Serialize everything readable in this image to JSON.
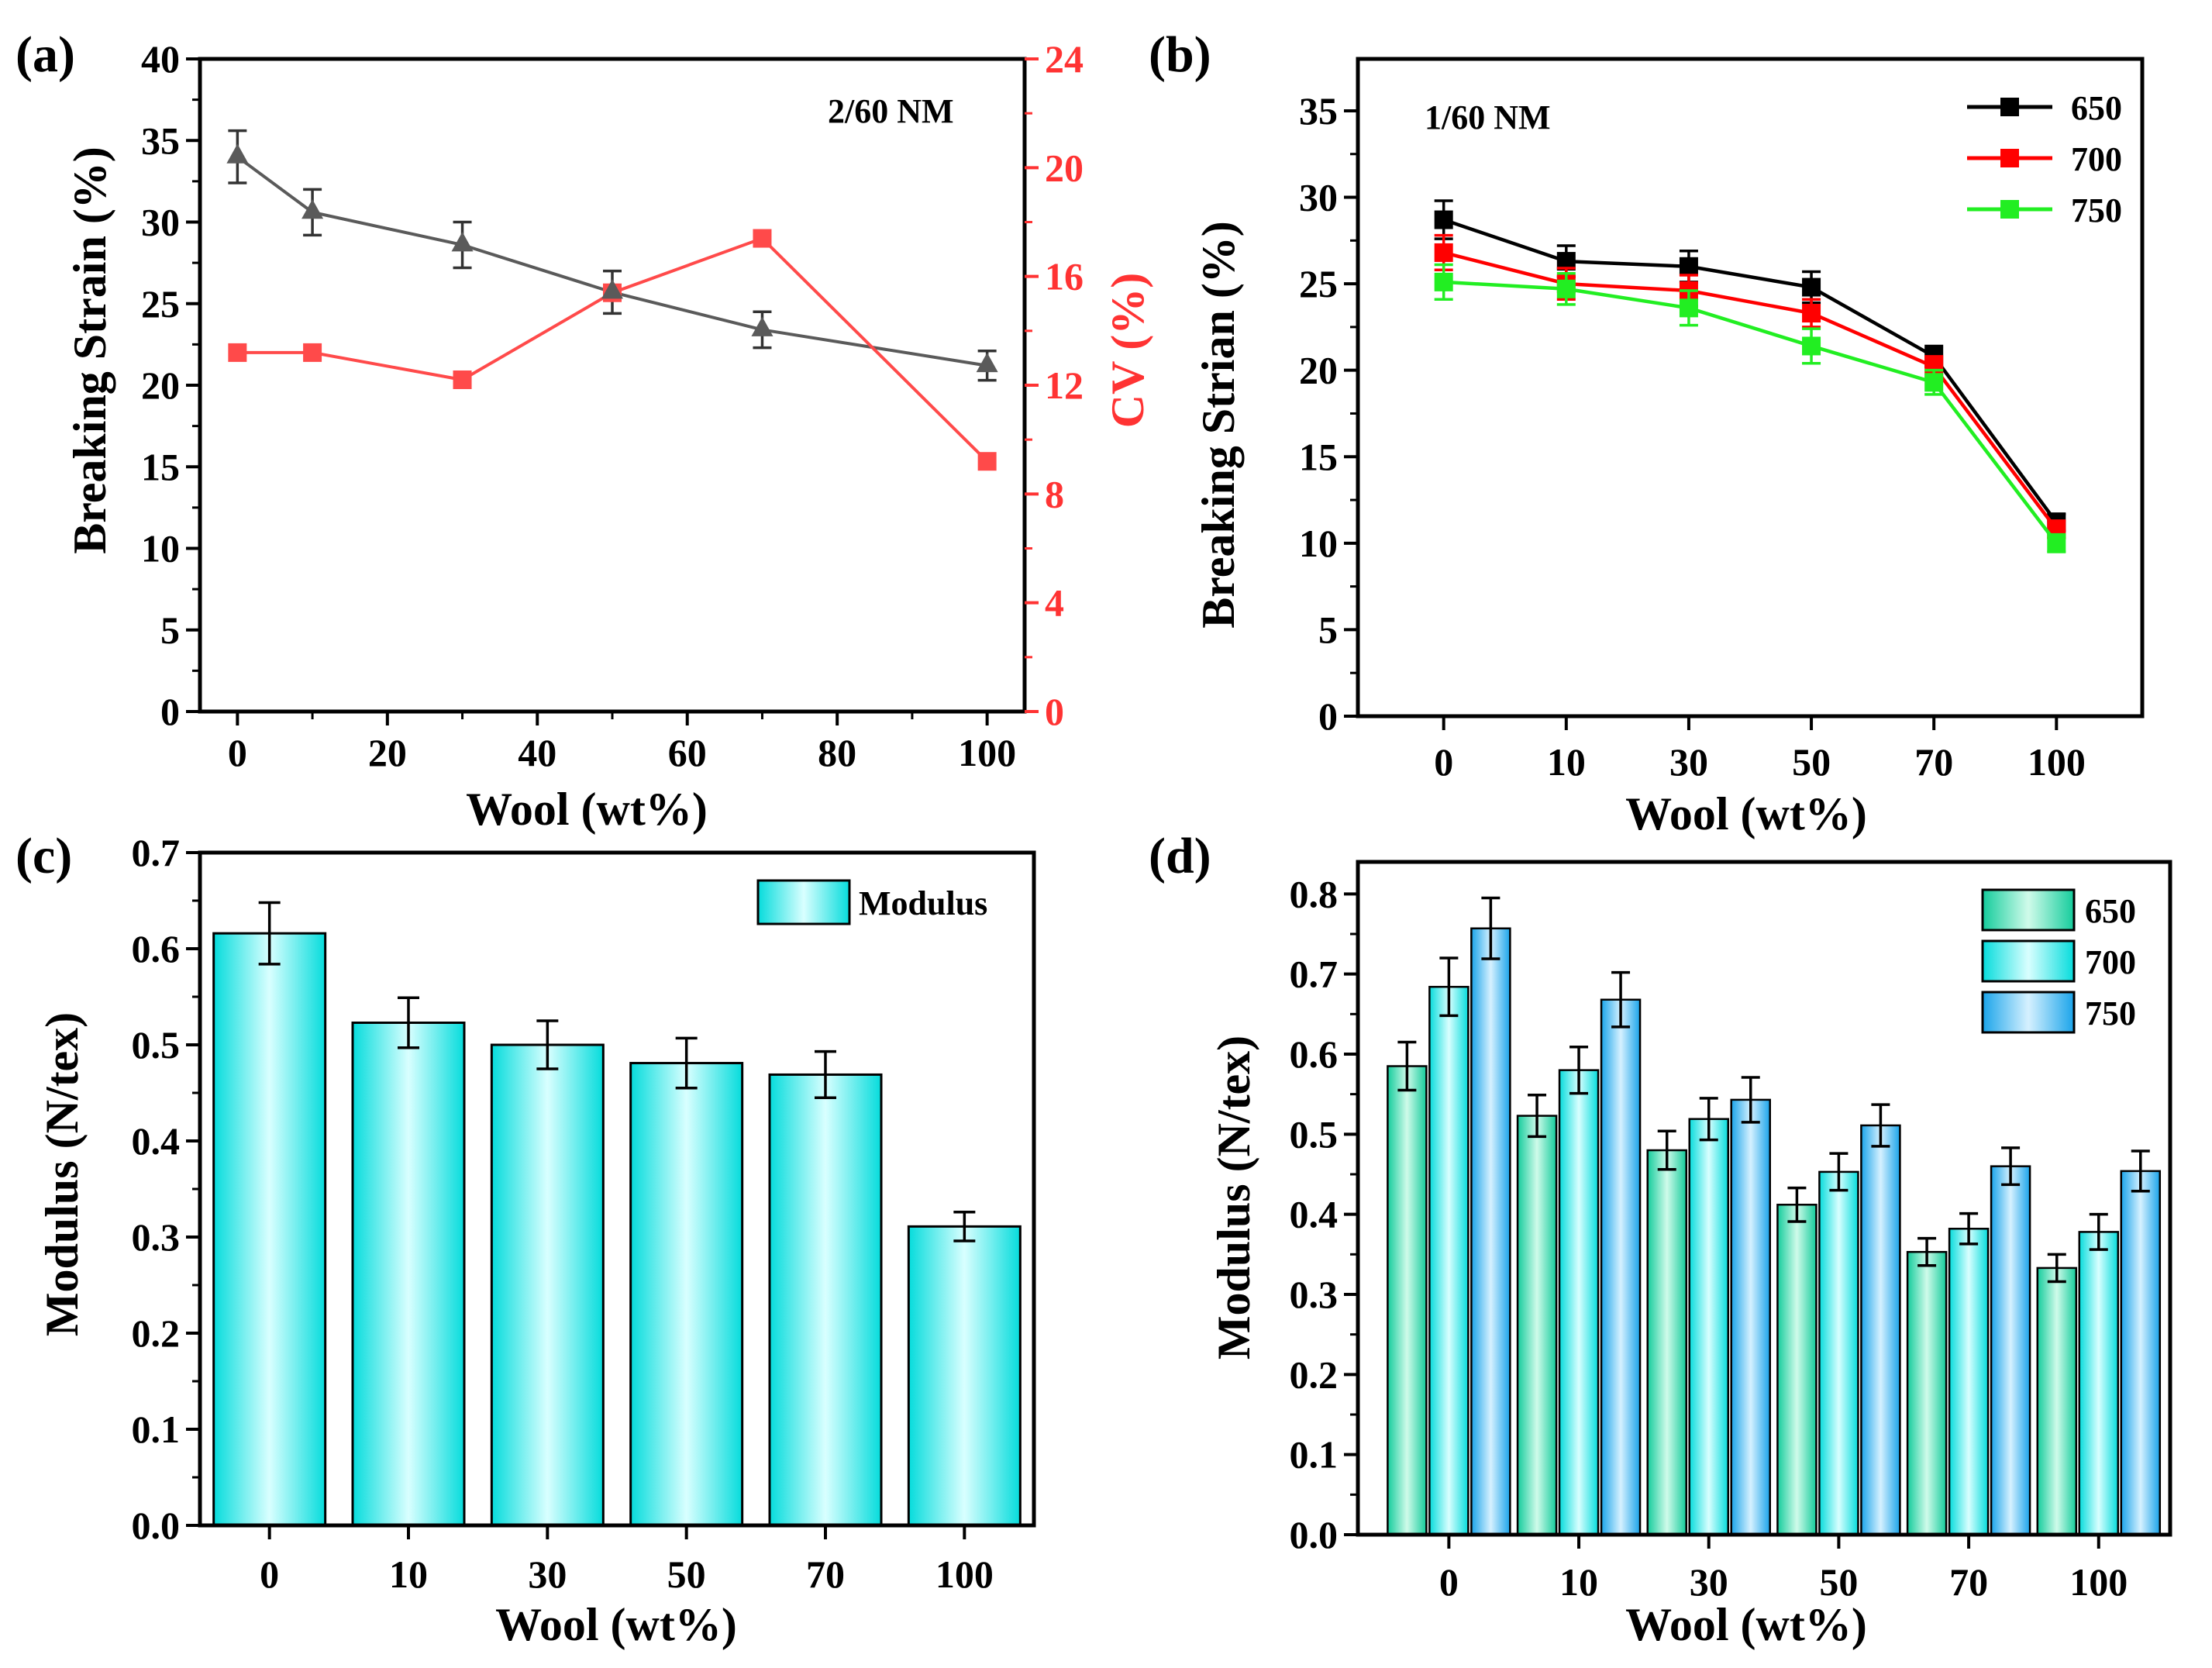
{
  "chart_data": [
    {
      "panel": "(a)",
      "type": "line",
      "annotation": "2/60 NM",
      "xlabel": "Wool (wt%)",
      "ylabel": "Breaking Strain (%)",
      "ylabel_right": "CV (%)",
      "xlim": [
        -5,
        105
      ],
      "xticks": [
        0,
        20,
        40,
        60,
        80,
        100
      ],
      "ylim": [
        0,
        40
      ],
      "yticks": [
        0,
        5,
        10,
        15,
        20,
        25,
        30,
        35,
        40
      ],
      "y2lim": [
        0,
        24
      ],
      "y2ticks": [
        0,
        4,
        8,
        12,
        16,
        20,
        24
      ],
      "x": [
        0,
        10,
        30,
        50,
        70,
        100
      ],
      "series": [
        {
          "name": "Breaking Strain",
          "axis": "left",
          "marker": "triangle",
          "color": "#5a5a5a",
          "values": [
            34.0,
            30.6,
            28.6,
            25.7,
            23.4,
            21.2
          ],
          "errors": [
            1.6,
            1.4,
            1.4,
            1.3,
            1.1,
            0.9
          ]
        },
        {
          "name": "CV",
          "axis": "right",
          "marker": "square",
          "color": "#ff4a4a",
          "values": [
            13.2,
            13.2,
            12.2,
            15.4,
            17.4,
            9.2
          ]
        }
      ]
    },
    {
      "panel": "(b)",
      "type": "line",
      "annotation": "1/60 NM",
      "xlabel": "Wool (wt%)",
      "ylabel": "Breaking Strian (%)",
      "categories": [
        "0",
        "10",
        "30",
        "50",
        "70",
        "100"
      ],
      "ylim": [
        0,
        38
      ],
      "yticks": [
        0,
        5,
        10,
        15,
        20,
        25,
        30,
        35
      ],
      "legend_position": "top-right",
      "series": [
        {
          "name": "650",
          "color": "#000000",
          "values": [
            28.7,
            26.3,
            26.0,
            24.8,
            20.8,
            11.2
          ],
          "errors": [
            1.1,
            0.9,
            0.9,
            0.9,
            0.6,
            0.5
          ]
        },
        {
          "name": "700",
          "color": "#ff0000",
          "values": [
            26.8,
            25.0,
            24.6,
            23.3,
            20.2,
            10.8
          ],
          "errors": [
            1.0,
            0.9,
            0.9,
            0.8,
            0.6,
            0.5
          ]
        },
        {
          "name": "750",
          "color": "#22ee22",
          "values": [
            25.1,
            24.7,
            23.6,
            21.4,
            19.3,
            10.0
          ],
          "errors": [
            1.0,
            0.9,
            1.0,
            1.0,
            0.7,
            0.5
          ]
        }
      ]
    },
    {
      "panel": "(c)",
      "type": "bar",
      "xlabel": "Wool (wt%)",
      "ylabel": "Modulus (N/tex)",
      "categories": [
        "0",
        "10",
        "30",
        "50",
        "70",
        "100"
      ],
      "ylim": [
        0,
        0.7
      ],
      "yticks": [
        "0.0",
        "0.1",
        "0.2",
        "0.3",
        "0.4",
        "0.5",
        "0.6",
        "0.7"
      ],
      "legend_position": "top-right",
      "series": [
        {
          "name": "Modulus",
          "color": "#1ee8e8",
          "values": [
            0.616,
            0.523,
            0.5,
            0.481,
            0.469,
            0.311
          ],
          "errors": [
            0.032,
            0.026,
            0.025,
            0.026,
            0.024,
            0.015
          ]
        }
      ]
    },
    {
      "panel": "(d)",
      "type": "bar",
      "xlabel": "Wool (wt%)",
      "ylabel": "Modulus (N/tex)",
      "categories": [
        "0",
        "10",
        "30",
        "50",
        "70",
        "100"
      ],
      "ylim": [
        0,
        0.84
      ],
      "yticks": [
        "0.0",
        "0.1",
        "0.2",
        "0.3",
        "0.4",
        "0.5",
        "0.6",
        "0.7",
        "0.8"
      ],
      "legend_position": "top-right",
      "series": [
        {
          "name": "650",
          "color": "#2ed6ac",
          "values": [
            0.585,
            0.523,
            0.48,
            0.412,
            0.353,
            0.333
          ],
          "errors": [
            0.03,
            0.026,
            0.024,
            0.021,
            0.017,
            0.017
          ]
        },
        {
          "name": "700",
          "color": "#1ee8e8",
          "values": [
            0.684,
            0.58,
            0.519,
            0.453,
            0.382,
            0.378
          ],
          "errors": [
            0.036,
            0.029,
            0.026,
            0.023,
            0.019,
            0.022
          ]
        },
        {
          "name": "750",
          "color": "#2fb4ee",
          "values": [
            0.757,
            0.668,
            0.543,
            0.511,
            0.46,
            0.454
          ],
          "errors": [
            0.038,
            0.034,
            0.028,
            0.026,
            0.023,
            0.025
          ]
        }
      ]
    }
  ]
}
